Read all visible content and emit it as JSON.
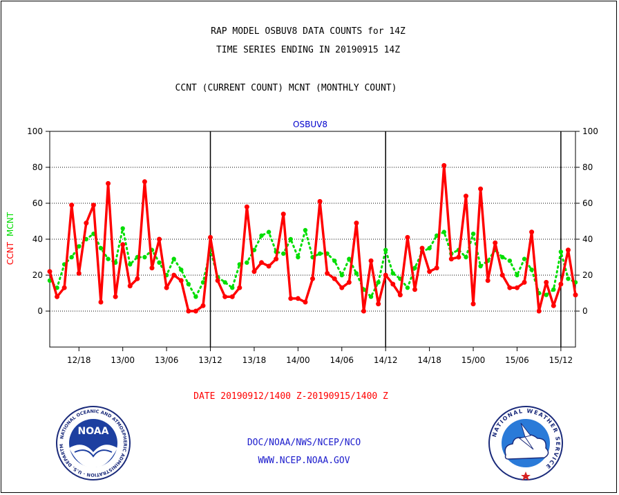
{
  "header": {
    "title_line1": "RAP MODEL OSBUV8 DATA COUNTS for 14Z",
    "title_line2": "TIME SERIES ENDING IN 20190915 14Z",
    "subtitle": "CCNT (CURRENT COUNT) MCNT (MONTHLY COUNT)"
  },
  "footer": {
    "date_range": "DATE 20190912/1400 Z-20190915/1400 Z",
    "org": "DOC/NOAA/NWS/NCEP/NCO",
    "url": "WWW.NCEP.NOAA.GOV"
  },
  "logos": {
    "left_text": "NOAA",
    "left_ring": "NATIONAL OCEANIC AND ATMOSPHERIC ADMINISTRATION · U.S. DEPARTMENT OF COMMERCE",
    "right_ring": "NATIONAL WEATHER SERVICE"
  },
  "colors": {
    "ccnt": "#ff0000",
    "mcnt": "#00dd00",
    "plot_label": "#0000cc",
    "footer_blue": "#1a1acc"
  },
  "chart_data": {
    "type": "line",
    "title": "OSBUV8",
    "ylabel_series1": "CCNT",
    "ylabel_series2": "MCNT",
    "ylim": [
      -20,
      100
    ],
    "yticks": [
      0,
      20,
      40,
      60,
      80,
      100
    ],
    "xlim": [
      0,
      72
    ],
    "xticks": [
      {
        "x": 4,
        "label": "12/18"
      },
      {
        "x": 10,
        "label": "13/00"
      },
      {
        "x": 16,
        "label": "13/06"
      },
      {
        "x": 22,
        "label": "13/12"
      },
      {
        "x": 28,
        "label": "13/18"
      },
      {
        "x": 34,
        "label": "14/00"
      },
      {
        "x": 40,
        "label": "14/06"
      },
      {
        "x": 46,
        "label": "14/12"
      },
      {
        "x": 52,
        "label": "14/18"
      },
      {
        "x": 58,
        "label": "15/00"
      },
      {
        "x": 64,
        "label": "15/06"
      },
      {
        "x": 70,
        "label": "15/12"
      }
    ],
    "day_boundaries": [
      22,
      46,
      70
    ],
    "grid": "horizontal",
    "series": [
      {
        "name": "CCNT",
        "values": [
          22,
          8,
          13,
          59,
          21,
          49,
          59,
          5,
          71,
          8,
          37,
          14,
          18,
          72,
          24,
          40,
          13,
          20,
          17,
          0,
          0,
          3,
          41,
          17,
          8,
          8,
          13,
          58,
          22,
          27,
          25,
          29,
          54,
          7,
          7,
          5,
          18,
          61,
          21,
          18,
          13,
          16,
          49,
          0,
          28,
          4,
          20,
          15,
          9,
          41,
          12,
          35,
          22,
          24,
          81,
          29,
          30,
          64,
          4,
          68,
          17,
          38,
          20,
          13,
          13,
          16,
          44,
          0,
          16,
          3,
          15,
          34,
          9
        ]
      },
      {
        "name": "MCNT",
        "values": [
          17,
          13,
          26,
          30,
          36,
          40,
          43,
          35,
          29,
          27,
          46,
          26,
          30,
          30,
          34,
          27,
          20,
          29,
          23,
          15,
          8,
          16,
          34,
          19,
          16,
          13,
          26,
          27,
          34,
          42,
          44,
          33,
          32,
          40,
          30,
          45,
          30,
          32,
          32,
          28,
          20,
          29,
          21,
          12,
          8,
          16,
          34,
          21,
          18,
          13,
          24,
          33,
          35,
          42,
          44,
          32,
          34,
          30,
          43,
          25,
          28,
          34,
          30,
          28,
          20,
          29,
          23,
          10,
          9,
          12,
          33,
          18,
          16
        ]
      }
    ]
  }
}
